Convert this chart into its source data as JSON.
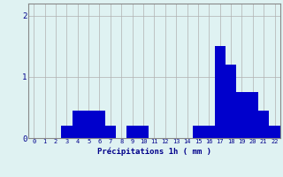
{
  "categories": [
    0,
    1,
    2,
    3,
    4,
    5,
    6,
    7,
    8,
    9,
    10,
    11,
    12,
    13,
    14,
    15,
    16,
    17,
    18,
    19,
    20,
    21,
    22
  ],
  "values": [
    0,
    0,
    0,
    0.2,
    0.45,
    0.45,
    0.45,
    0.2,
    0,
    0.2,
    0.2,
    0,
    0,
    0,
    0,
    0.2,
    0.2,
    1.5,
    1.2,
    0.75,
    0.75,
    0.45,
    0.2
  ],
  "bar_color": "#0000cc",
  "background_color": "#dff2f2",
  "grid_color": "#b0b0b0",
  "xlabel": "Précipitations 1h ( mm )",
  "xlabel_color": "#00008b",
  "tick_color": "#00008b",
  "axis_color": "#888888",
  "ylim": [
    0,
    2.2
  ],
  "yticks": [
    0,
    1,
    2
  ],
  "figsize": [
    3.2,
    2.0
  ],
  "dpi": 100
}
